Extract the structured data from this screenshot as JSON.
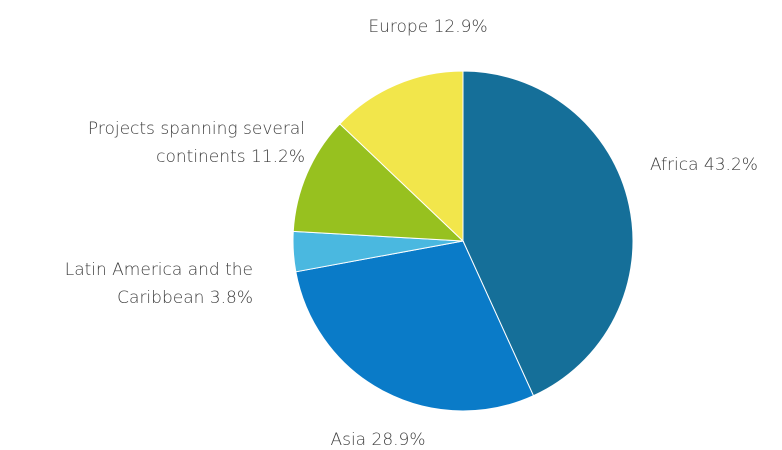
{
  "chart_data": {
    "type": "pie",
    "categories": [
      "Africa",
      "Asia",
      "Latin America and the Caribbean",
      "Projects spanning several continents",
      "Europe"
    ],
    "values": [
      43.2,
      28.9,
      3.8,
      11.2,
      12.9
    ],
    "value_labels": [
      "43.2%",
      "28.9%",
      "3.8%",
      "11.2%",
      "12.9%"
    ],
    "colors": [
      "#156f99",
      "#0a7bc8",
      "#4ab8e0",
      "#97c11f",
      "#f2e64b"
    ]
  }
}
